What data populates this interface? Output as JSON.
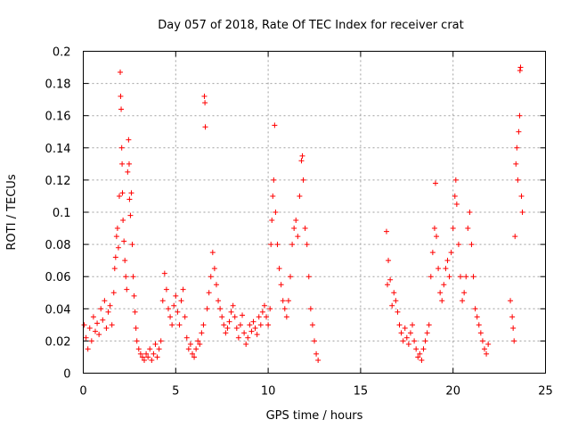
{
  "chart_data": {
    "type": "scatter",
    "title": "Day 057 of 2018, Rate Of TEC Index for receiver crat",
    "xlabel": "GPS time / hours",
    "ylabel": "ROTI / TECUs",
    "xlim": [
      0,
      25
    ],
    "ylim": [
      0,
      0.2
    ],
    "x_ticks": [
      "0",
      "5",
      "10",
      "15",
      "20",
      "25"
    ],
    "y_ticks": [
      "0",
      "0.02",
      "0.04",
      "0.06",
      "0.08",
      "0.1",
      "0.12",
      "0.14",
      "0.16",
      "0.18",
      "0.2"
    ],
    "grid": true,
    "marker": "+",
    "color": "#ff0000",
    "series": [
      {
        "name": "ROTI",
        "points": [
          [
            0.05,
            0.03
          ],
          [
            0.15,
            0.022
          ],
          [
            0.25,
            0.015
          ],
          [
            0.35,
            0.028
          ],
          [
            0.45,
            0.02
          ],
          [
            0.55,
            0.035
          ],
          [
            0.65,
            0.026
          ],
          [
            0.75,
            0.031
          ],
          [
            0.85,
            0.024
          ],
          [
            0.95,
            0.04
          ],
          [
            1.05,
            0.033
          ],
          [
            1.15,
            0.045
          ],
          [
            1.25,
            0.028
          ],
          [
            1.35,
            0.038
          ],
          [
            1.45,
            0.042
          ],
          [
            1.55,
            0.03
          ],
          [
            1.65,
            0.05
          ],
          [
            1.7,
            0.065
          ],
          [
            1.75,
            0.072
          ],
          [
            1.8,
            0.085
          ],
          [
            1.85,
            0.09
          ],
          [
            1.9,
            0.078
          ],
          [
            1.95,
            0.11
          ],
          [
            2.0,
            0.187
          ],
          [
            2.02,
            0.172
          ],
          [
            2.05,
            0.164
          ],
          [
            2.08,
            0.14
          ],
          [
            2.1,
            0.13
          ],
          [
            2.12,
            0.112
          ],
          [
            2.15,
            0.095
          ],
          [
            2.2,
            0.082
          ],
          [
            2.25,
            0.07
          ],
          [
            2.3,
            0.06
          ],
          [
            2.35,
            0.052
          ],
          [
            2.4,
            0.125
          ],
          [
            2.45,
            0.145
          ],
          [
            2.48,
            0.13
          ],
          [
            2.5,
            0.108
          ],
          [
            2.55,
            0.098
          ],
          [
            2.6,
            0.112
          ],
          [
            2.65,
            0.08
          ],
          [
            2.7,
            0.06
          ],
          [
            2.75,
            0.048
          ],
          [
            2.8,
            0.038
          ],
          [
            2.85,
            0.028
          ],
          [
            2.9,
            0.02
          ],
          [
            3.0,
            0.015
          ],
          [
            3.1,
            0.012
          ],
          [
            3.2,
            0.01
          ],
          [
            3.3,
            0.008
          ],
          [
            3.4,
            0.012
          ],
          [
            3.5,
            0.01
          ],
          [
            3.6,
            0.015
          ],
          [
            3.7,
            0.008
          ],
          [
            3.8,
            0.012
          ],
          [
            3.9,
            0.018
          ],
          [
            4.0,
            0.01
          ],
          [
            4.1,
            0.015
          ],
          [
            4.2,
            0.02
          ],
          [
            4.3,
            0.045
          ],
          [
            4.4,
            0.062
          ],
          [
            4.5,
            0.052
          ],
          [
            4.6,
            0.04
          ],
          [
            4.7,
            0.035
          ],
          [
            4.8,
            0.03
          ],
          [
            4.9,
            0.042
          ],
          [
            5.0,
            0.048
          ],
          [
            5.1,
            0.038
          ],
          [
            5.2,
            0.03
          ],
          [
            5.3,
            0.045
          ],
          [
            5.4,
            0.052
          ],
          [
            5.5,
            0.035
          ],
          [
            5.6,
            0.022
          ],
          [
            5.7,
            0.015
          ],
          [
            5.8,
            0.018
          ],
          [
            5.9,
            0.012
          ],
          [
            6.0,
            0.01
          ],
          [
            6.1,
            0.015
          ],
          [
            6.2,
            0.02
          ],
          [
            6.3,
            0.018
          ],
          [
            6.4,
            0.025
          ],
          [
            6.5,
            0.03
          ],
          [
            6.55,
            0.172
          ],
          [
            6.58,
            0.168
          ],
          [
            6.6,
            0.153
          ],
          [
            6.7,
            0.04
          ],
          [
            6.8,
            0.05
          ],
          [
            6.9,
            0.06
          ],
          [
            7.0,
            0.075
          ],
          [
            7.1,
            0.065
          ],
          [
            7.2,
            0.055
          ],
          [
            7.3,
            0.045
          ],
          [
            7.4,
            0.04
          ],
          [
            7.5,
            0.035
          ],
          [
            7.6,
            0.03
          ],
          [
            7.7,
            0.025
          ],
          [
            7.8,
            0.028
          ],
          [
            7.9,
            0.032
          ],
          [
            8.0,
            0.038
          ],
          [
            8.1,
            0.042
          ],
          [
            8.2,
            0.035
          ],
          [
            8.3,
            0.028
          ],
          [
            8.4,
            0.022
          ],
          [
            8.5,
            0.03
          ],
          [
            8.6,
            0.036
          ],
          [
            8.7,
            0.025
          ],
          [
            8.8,
            0.018
          ],
          [
            8.9,
            0.022
          ],
          [
            9.0,
            0.03
          ],
          [
            9.1,
            0.026
          ],
          [
            9.2,
            0.032
          ],
          [
            9.3,
            0.028
          ],
          [
            9.4,
            0.024
          ],
          [
            9.5,
            0.035
          ],
          [
            9.6,
            0.03
          ],
          [
            9.7,
            0.038
          ],
          [
            9.8,
            0.042
          ],
          [
            9.9,
            0.035
          ],
          [
            10.0,
            0.03
          ],
          [
            10.1,
            0.04
          ],
          [
            10.15,
            0.08
          ],
          [
            10.2,
            0.095
          ],
          [
            10.25,
            0.11
          ],
          [
            10.3,
            0.12
          ],
          [
            10.35,
            0.154
          ],
          [
            10.4,
            0.1
          ],
          [
            10.5,
            0.08
          ],
          [
            10.6,
            0.065
          ],
          [
            10.7,
            0.055
          ],
          [
            10.8,
            0.045
          ],
          [
            10.9,
            0.04
          ],
          [
            11.0,
            0.035
          ],
          [
            11.1,
            0.045
          ],
          [
            11.2,
            0.06
          ],
          [
            11.3,
            0.08
          ],
          [
            11.4,
            0.09
          ],
          [
            11.5,
            0.095
          ],
          [
            11.6,
            0.085
          ],
          [
            11.7,
            0.11
          ],
          [
            11.8,
            0.132
          ],
          [
            11.85,
            0.135
          ],
          [
            11.9,
            0.12
          ],
          [
            12.0,
            0.09
          ],
          [
            12.1,
            0.08
          ],
          [
            12.2,
            0.06
          ],
          [
            12.3,
            0.04
          ],
          [
            12.4,
            0.03
          ],
          [
            12.5,
            0.02
          ],
          [
            12.6,
            0.012
          ],
          [
            12.7,
            0.008
          ],
          [
            16.4,
            0.088
          ],
          [
            16.45,
            0.055
          ],
          [
            16.5,
            0.07
          ],
          [
            16.6,
            0.058
          ],
          [
            16.7,
            0.042
          ],
          [
            16.8,
            0.05
          ],
          [
            16.9,
            0.045
          ],
          [
            17.0,
            0.038
          ],
          [
            17.1,
            0.03
          ],
          [
            17.2,
            0.025
          ],
          [
            17.3,
            0.02
          ],
          [
            17.4,
            0.028
          ],
          [
            17.5,
            0.022
          ],
          [
            17.6,
            0.018
          ],
          [
            17.7,
            0.025
          ],
          [
            17.8,
            0.03
          ],
          [
            17.9,
            0.02
          ],
          [
            18.0,
            0.015
          ],
          [
            18.1,
            0.01
          ],
          [
            18.2,
            0.012
          ],
          [
            18.3,
            0.008
          ],
          [
            18.4,
            0.015
          ],
          [
            18.5,
            0.02
          ],
          [
            18.6,
            0.025
          ],
          [
            18.7,
            0.03
          ],
          [
            18.8,
            0.06
          ],
          [
            18.9,
            0.075
          ],
          [
            19.0,
            0.09
          ],
          [
            19.05,
            0.118
          ],
          [
            19.1,
            0.085
          ],
          [
            19.2,
            0.065
          ],
          [
            19.3,
            0.05
          ],
          [
            19.4,
            0.045
          ],
          [
            19.5,
            0.055
          ],
          [
            19.6,
            0.065
          ],
          [
            19.7,
            0.07
          ],
          [
            19.8,
            0.06
          ],
          [
            19.9,
            0.075
          ],
          [
            20.0,
            0.09
          ],
          [
            20.1,
            0.11
          ],
          [
            20.15,
            0.12
          ],
          [
            20.2,
            0.105
          ],
          [
            20.3,
            0.08
          ],
          [
            20.4,
            0.06
          ],
          [
            20.5,
            0.045
          ],
          [
            20.6,
            0.05
          ],
          [
            20.7,
            0.06
          ],
          [
            20.8,
            0.09
          ],
          [
            20.9,
            0.1
          ],
          [
            21.0,
            0.08
          ],
          [
            21.1,
            0.06
          ],
          [
            21.2,
            0.04
          ],
          [
            21.3,
            0.035
          ],
          [
            21.4,
            0.03
          ],
          [
            21.5,
            0.025
          ],
          [
            21.6,
            0.02
          ],
          [
            21.7,
            0.015
          ],
          [
            21.8,
            0.012
          ],
          [
            21.9,
            0.018
          ],
          [
            23.1,
            0.045
          ],
          [
            23.2,
            0.035
          ],
          [
            23.25,
            0.028
          ],
          [
            23.3,
            0.02
          ],
          [
            23.35,
            0.085
          ],
          [
            23.4,
            0.13
          ],
          [
            23.45,
            0.14
          ],
          [
            23.5,
            0.12
          ],
          [
            23.55,
            0.15
          ],
          [
            23.6,
            0.16
          ],
          [
            23.62,
            0.188
          ],
          [
            23.65,
            0.19
          ],
          [
            23.7,
            0.11
          ],
          [
            23.75,
            0.1
          ]
        ]
      }
    ]
  }
}
